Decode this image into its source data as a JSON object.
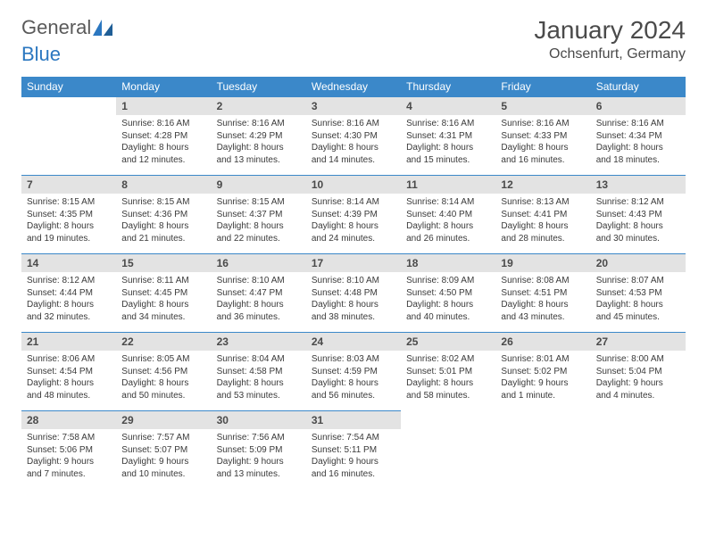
{
  "logo": {
    "text_a": "General",
    "text_b": "Blue"
  },
  "header": {
    "month_title": "January 2024",
    "location": "Ochsenfurt, Germany"
  },
  "colors": {
    "header_bg": "#3b88c9",
    "header_text": "#ffffff",
    "daynum_bg": "#e3e3e3",
    "daynum_text": "#4a4a4a",
    "cell_border": "#3b88c9",
    "body_text": "#3a3a3a",
    "logo_gray": "#5a5a5a",
    "logo_blue": "#2b77c0"
  },
  "weekdays": [
    "Sunday",
    "Monday",
    "Tuesday",
    "Wednesday",
    "Thursday",
    "Friday",
    "Saturday"
  ],
  "grid": [
    [
      null,
      {
        "n": "1",
        "sr": "8:16 AM",
        "ss": "4:28 PM",
        "dl": "8 hours and 12 minutes."
      },
      {
        "n": "2",
        "sr": "8:16 AM",
        "ss": "4:29 PM",
        "dl": "8 hours and 13 minutes."
      },
      {
        "n": "3",
        "sr": "8:16 AM",
        "ss": "4:30 PM",
        "dl": "8 hours and 14 minutes."
      },
      {
        "n": "4",
        "sr": "8:16 AM",
        "ss": "4:31 PM",
        "dl": "8 hours and 15 minutes."
      },
      {
        "n": "5",
        "sr": "8:16 AM",
        "ss": "4:33 PM",
        "dl": "8 hours and 16 minutes."
      },
      {
        "n": "6",
        "sr": "8:16 AM",
        "ss": "4:34 PM",
        "dl": "8 hours and 18 minutes."
      }
    ],
    [
      {
        "n": "7",
        "sr": "8:15 AM",
        "ss": "4:35 PM",
        "dl": "8 hours and 19 minutes."
      },
      {
        "n": "8",
        "sr": "8:15 AM",
        "ss": "4:36 PM",
        "dl": "8 hours and 21 minutes."
      },
      {
        "n": "9",
        "sr": "8:15 AM",
        "ss": "4:37 PM",
        "dl": "8 hours and 22 minutes."
      },
      {
        "n": "10",
        "sr": "8:14 AM",
        "ss": "4:39 PM",
        "dl": "8 hours and 24 minutes."
      },
      {
        "n": "11",
        "sr": "8:14 AM",
        "ss": "4:40 PM",
        "dl": "8 hours and 26 minutes."
      },
      {
        "n": "12",
        "sr": "8:13 AM",
        "ss": "4:41 PM",
        "dl": "8 hours and 28 minutes."
      },
      {
        "n": "13",
        "sr": "8:12 AM",
        "ss": "4:43 PM",
        "dl": "8 hours and 30 minutes."
      }
    ],
    [
      {
        "n": "14",
        "sr": "8:12 AM",
        "ss": "4:44 PM",
        "dl": "8 hours and 32 minutes."
      },
      {
        "n": "15",
        "sr": "8:11 AM",
        "ss": "4:45 PM",
        "dl": "8 hours and 34 minutes."
      },
      {
        "n": "16",
        "sr": "8:10 AM",
        "ss": "4:47 PM",
        "dl": "8 hours and 36 minutes."
      },
      {
        "n": "17",
        "sr": "8:10 AM",
        "ss": "4:48 PM",
        "dl": "8 hours and 38 minutes."
      },
      {
        "n": "18",
        "sr": "8:09 AM",
        "ss": "4:50 PM",
        "dl": "8 hours and 40 minutes."
      },
      {
        "n": "19",
        "sr": "8:08 AM",
        "ss": "4:51 PM",
        "dl": "8 hours and 43 minutes."
      },
      {
        "n": "20",
        "sr": "8:07 AM",
        "ss": "4:53 PM",
        "dl": "8 hours and 45 minutes."
      }
    ],
    [
      {
        "n": "21",
        "sr": "8:06 AM",
        "ss": "4:54 PM",
        "dl": "8 hours and 48 minutes."
      },
      {
        "n": "22",
        "sr": "8:05 AM",
        "ss": "4:56 PM",
        "dl": "8 hours and 50 minutes."
      },
      {
        "n": "23",
        "sr": "8:04 AM",
        "ss": "4:58 PM",
        "dl": "8 hours and 53 minutes."
      },
      {
        "n": "24",
        "sr": "8:03 AM",
        "ss": "4:59 PM",
        "dl": "8 hours and 56 minutes."
      },
      {
        "n": "25",
        "sr": "8:02 AM",
        "ss": "5:01 PM",
        "dl": "8 hours and 58 minutes."
      },
      {
        "n": "26",
        "sr": "8:01 AM",
        "ss": "5:02 PM",
        "dl": "9 hours and 1 minute."
      },
      {
        "n": "27",
        "sr": "8:00 AM",
        "ss": "5:04 PM",
        "dl": "9 hours and 4 minutes."
      }
    ],
    [
      {
        "n": "28",
        "sr": "7:58 AM",
        "ss": "5:06 PM",
        "dl": "9 hours and 7 minutes."
      },
      {
        "n": "29",
        "sr": "7:57 AM",
        "ss": "5:07 PM",
        "dl": "9 hours and 10 minutes."
      },
      {
        "n": "30",
        "sr": "7:56 AM",
        "ss": "5:09 PM",
        "dl": "9 hours and 13 minutes."
      },
      {
        "n": "31",
        "sr": "7:54 AM",
        "ss": "5:11 PM",
        "dl": "9 hours and 16 minutes."
      },
      null,
      null,
      null
    ]
  ],
  "labels": {
    "sunrise": "Sunrise: ",
    "sunset": "Sunset: ",
    "daylight": "Daylight: "
  }
}
